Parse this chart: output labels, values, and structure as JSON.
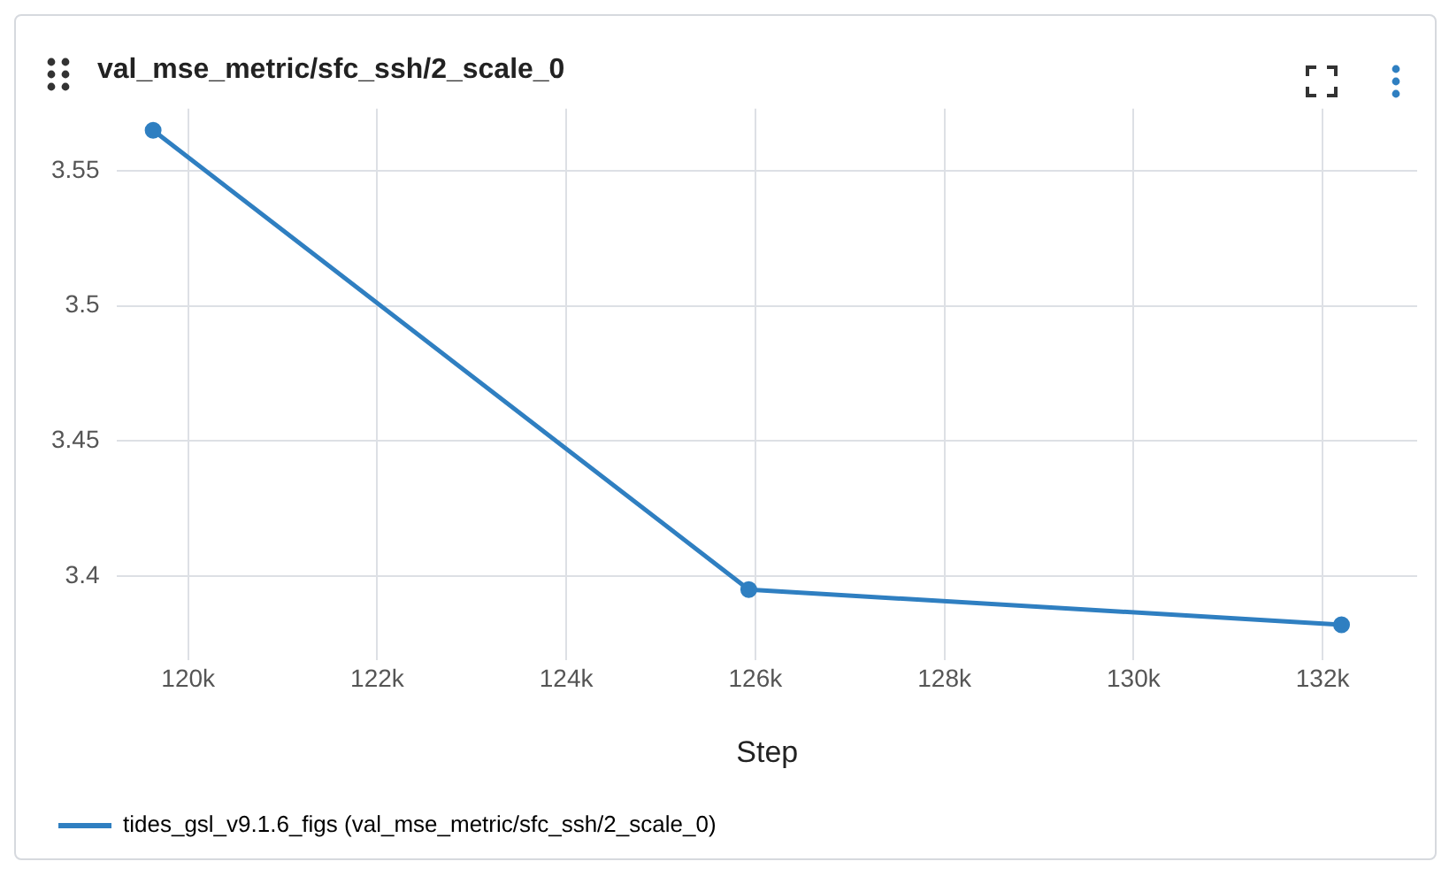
{
  "chart_data": {
    "type": "line",
    "title": "val_mse_metric/sfc_ssh/2_scale_0",
    "xlabel": "Step",
    "series": [
      {
        "name": "tides_gsl_v9.1.6_figs (val_mse_metric/sfc_ssh/2_scale_0)",
        "color": "#2f7fc1",
        "x": [
          119630,
          125930,
          132200
        ],
        "values": [
          3.565,
          3.395,
          3.382
        ]
      }
    ],
    "xlim": [
      119250,
      133000
    ],
    "xticks": [
      {
        "value": 120000,
        "label": "120k"
      },
      {
        "value": 122000,
        "label": "122k"
      },
      {
        "value": 124000,
        "label": "124k"
      },
      {
        "value": 126000,
        "label": "126k"
      },
      {
        "value": 128000,
        "label": "128k"
      },
      {
        "value": 130000,
        "label": "130k"
      },
      {
        "value": 132000,
        "label": "132k"
      }
    ],
    "ylim": [
      3.369,
      3.573
    ],
    "yticks": [
      3.4,
      3.45,
      3.5,
      3.55
    ],
    "grid": true,
    "legend": "bottom left",
    "marker": "circle",
    "line_style": "solid"
  }
}
